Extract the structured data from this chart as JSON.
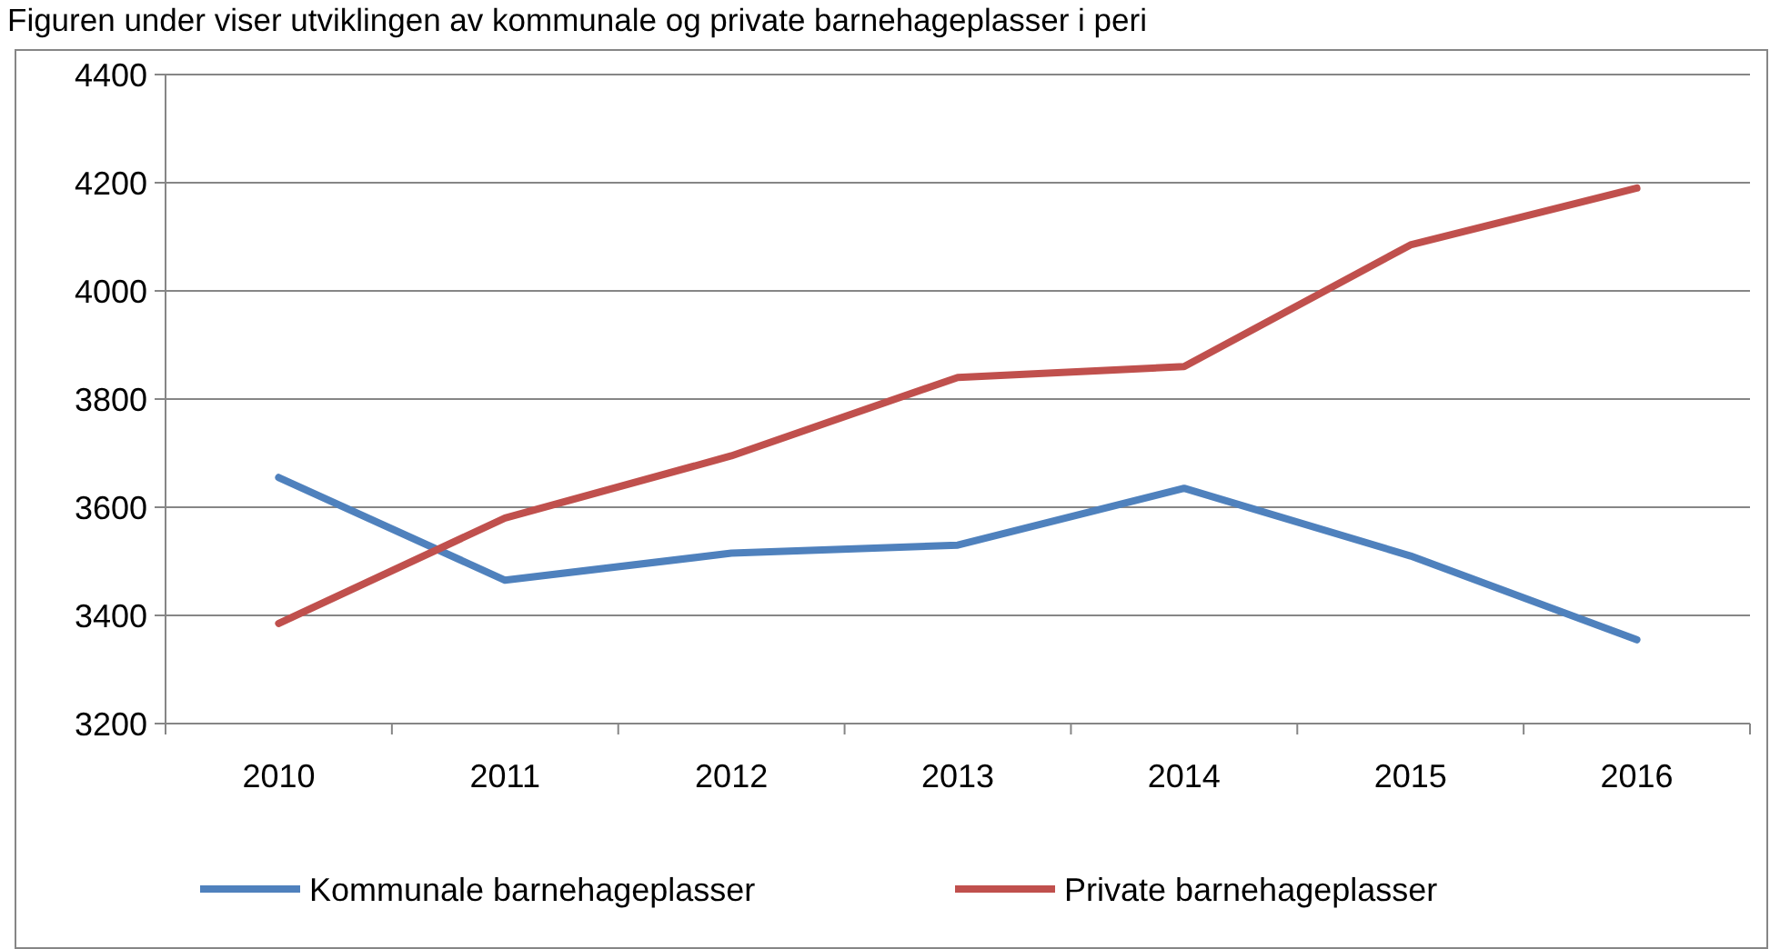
{
  "chart_data": {
    "type": "line",
    "title": "Figuren under viser utviklingen av kommunale og private barnehageplasser i peri",
    "categories": [
      "2010",
      "2011",
      "2012",
      "2013",
      "2014",
      "2015",
      "2016"
    ],
    "series": [
      {
        "name": "Kommunale barnehageplasser",
        "color": "#4f81bd",
        "values": [
          3655,
          3465,
          3515,
          3530,
          3635,
          3510,
          3355
        ]
      },
      {
        "name": "Private barnehageplasser",
        "color": "#c0504d",
        "values": [
          3385,
          3580,
          3695,
          3840,
          3860,
          4085,
          4190
        ]
      }
    ],
    "ylim": [
      3200,
      4400
    ],
    "yticks": [
      3200,
      3400,
      3600,
      3800,
      4000,
      4200,
      4400
    ],
    "grid": "y",
    "legend": "bottom",
    "marker": "none",
    "line_style": "solid"
  }
}
